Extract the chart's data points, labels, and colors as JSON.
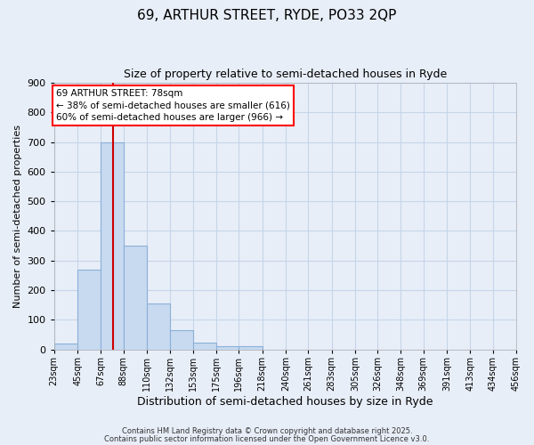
{
  "title": "69, ARTHUR STREET, RYDE, PO33 2QP",
  "subtitle": "Size of property relative to semi-detached houses in Ryde",
  "xlabel": "Distribution of semi-detached houses by size in Ryde",
  "ylabel": "Number of semi-detached properties",
  "bin_labels": [
    "23sqm",
    "45sqm",
    "67sqm",
    "88sqm",
    "110sqm",
    "132sqm",
    "153sqm",
    "175sqm",
    "196sqm",
    "218sqm",
    "240sqm",
    "261sqm",
    "283sqm",
    "305sqm",
    "326sqm",
    "348sqm",
    "369sqm",
    "391sqm",
    "413sqm",
    "434sqm",
    "456sqm"
  ],
  "bar_heights": [
    20,
    270,
    700,
    350,
    155,
    65,
    22,
    12,
    10,
    0,
    0,
    0,
    0,
    0,
    0,
    0,
    0,
    0,
    0,
    0
  ],
  "bar_color": "#c8daf0",
  "bar_edge_color": "#8ab0d8",
  "grid_color": "#c5d5e8",
  "background_color": "#e8eef8",
  "vline_x": 78,
  "vline_color": "#cc0000",
  "annotation_title": "69 ARTHUR STREET: 78sqm",
  "annotation_line1": "← 38% of semi-detached houses are smaller (616)",
  "annotation_line2": "60% of semi-detached houses are larger (966) →",
  "ylim_max": 900,
  "yticks": [
    0,
    100,
    200,
    300,
    400,
    500,
    600,
    700,
    800,
    900
  ],
  "footer1": "Contains HM Land Registry data © Crown copyright and database right 2025.",
  "footer2": "Contains public sector information licensed under the Open Government Licence v3.0.",
  "bin_edges": [
    23,
    45,
    67,
    88,
    110,
    132,
    153,
    175,
    196,
    218,
    240,
    261,
    283,
    305,
    326,
    348,
    369,
    391,
    413,
    434,
    456
  ]
}
